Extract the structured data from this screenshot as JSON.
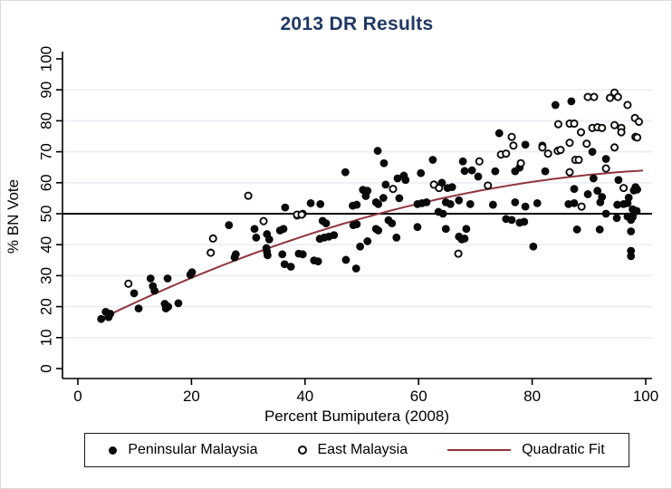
{
  "chart_data": {
    "type": "scatter",
    "title": "2013 DR Results",
    "title_color": "#1f3864",
    "xlabel": "Percent Bumiputera (2008)",
    "ylabel": "% BN Vote",
    "xlim": [
      0,
      100
    ],
    "ylim": [
      0,
      100
    ],
    "x_ticks": [
      0,
      20,
      40,
      60,
      80,
      100
    ],
    "y_ticks": [
      0,
      10,
      20,
      30,
      40,
      50,
      60,
      70,
      80,
      90,
      100
    ],
    "gridlines_y": [
      10,
      20,
      30,
      40,
      60,
      70,
      80,
      90
    ],
    "grid_color": "#e8eef4",
    "axis_color": "#000000",
    "reference_line": {
      "y": 50,
      "color": "#000000"
    },
    "legend_position": "bottom",
    "series": [
      {
        "name": "Peninsular Malaysia",
        "marker": "filled-circle",
        "color": "#0a0a0a",
        "points": [
          [
            4.1,
            16
          ],
          [
            4.9,
            18.3
          ],
          [
            5.4,
            16.6
          ],
          [
            5.7,
            17.7
          ],
          [
            9.9,
            24.3
          ],
          [
            10.7,
            19.4
          ],
          [
            12.8,
            29.1
          ],
          [
            13.2,
            26.6
          ],
          [
            13.5,
            25.1
          ],
          [
            15.3,
            20.9
          ],
          [
            15.5,
            19.4
          ],
          [
            15.9,
            20
          ],
          [
            15.8,
            29.1
          ],
          [
            17.7,
            21.1
          ],
          [
            19.8,
            30.3
          ],
          [
            20.1,
            31.1
          ],
          [
            26.6,
            46.3
          ],
          [
            27.6,
            35.9
          ],
          [
            27.8,
            36.9
          ],
          [
            31.1,
            45.1
          ],
          [
            31.4,
            42.3
          ],
          [
            33.2,
            38.9
          ],
          [
            33.3,
            43.4
          ],
          [
            33.3,
            37.7
          ],
          [
            33.4,
            36.6
          ],
          [
            33.7,
            41.7
          ],
          [
            35.6,
            44.6
          ],
          [
            36,
            36.9
          ],
          [
            36.2,
            45.1
          ],
          [
            36.4,
            33.7
          ],
          [
            36.5,
            52
          ],
          [
            37.5,
            32.9
          ],
          [
            38.6,
            49.4
          ],
          [
            38.9,
            37.1
          ],
          [
            39.6,
            50
          ],
          [
            39.6,
            36.9
          ],
          [
            41,
            53.4
          ],
          [
            41.6,
            34.9
          ],
          [
            42.3,
            34.6
          ],
          [
            42.6,
            41.9
          ],
          [
            42.7,
            53.1
          ],
          [
            43.1,
            47.7
          ],
          [
            43.4,
            42.3
          ],
          [
            43.7,
            46.9
          ],
          [
            44.2,
            42.6
          ],
          [
            45.1,
            43.1
          ],
          [
            47.1,
            63.4
          ],
          [
            47.2,
            35.1
          ],
          [
            48.4,
            52.6
          ],
          [
            48.5,
            46.3
          ],
          [
            49,
            32.3
          ],
          [
            49.1,
            52.9
          ],
          [
            49.1,
            46.6
          ],
          [
            49.7,
            39.4
          ],
          [
            50.2,
            57.7
          ],
          [
            50.7,
            55.7
          ],
          [
            51,
            57.4
          ],
          [
            51,
            41.1
          ],
          [
            52.5,
            53.7
          ],
          [
            52.5,
            45.1
          ],
          [
            52.8,
            70.3
          ],
          [
            52.9,
            53.1
          ],
          [
            52.9,
            44.6
          ],
          [
            53.8,
            55.1
          ],
          [
            53.9,
            66.3
          ],
          [
            54.2,
            59.4
          ],
          [
            54.7,
            47.9
          ],
          [
            55.3,
            46.9
          ],
          [
            56.1,
            42.3
          ],
          [
            56.3,
            61.4
          ],
          [
            56.6,
            55
          ],
          [
            57.4,
            62.3
          ],
          [
            57.7,
            60.9
          ],
          [
            59.8,
            53.1
          ],
          [
            59.8,
            45.7
          ],
          [
            60.4,
            63.1
          ],
          [
            60.6,
            53.4
          ],
          [
            61.4,
            53.7
          ],
          [
            62.5,
            67.4
          ],
          [
            63.5,
            50.6
          ],
          [
            64.1,
            60
          ],
          [
            64.3,
            50
          ],
          [
            64.8,
            53.7
          ],
          [
            64.8,
            45.1
          ],
          [
            65.1,
            58.3
          ],
          [
            65.6,
            53.1
          ],
          [
            65.9,
            58.6
          ],
          [
            67.1,
            54.3
          ],
          [
            67.1,
            42.6
          ],
          [
            67.6,
            41.7
          ],
          [
            67.8,
            66.9
          ],
          [
            68.1,
            63.8
          ],
          [
            68.1,
            42
          ],
          [
            68.4,
            45.1
          ],
          [
            69.1,
            53.1
          ],
          [
            69.4,
            64
          ],
          [
            70.5,
            62
          ],
          [
            73.1,
            52.9
          ],
          [
            73.5,
            63.7
          ],
          [
            74.2,
            76
          ],
          [
            75.4,
            48.3
          ],
          [
            76.4,
            48
          ],
          [
            77,
            53.7
          ],
          [
            77,
            63.7
          ],
          [
            77.8,
            64.9
          ],
          [
            77.8,
            47.1
          ],
          [
            78.6,
            47.4
          ],
          [
            78.8,
            72.3
          ],
          [
            78.8,
            52.3
          ],
          [
            80.2,
            39.4
          ],
          [
            80.9,
            53.4
          ],
          [
            81.8,
            72
          ],
          [
            82.3,
            63.7
          ],
          [
            84.1,
            85.1
          ],
          [
            86.4,
            53.1
          ],
          [
            86.9,
            86.3
          ],
          [
            87.4,
            58
          ],
          [
            87.4,
            53.4
          ],
          [
            87.9,
            44.9
          ],
          [
            89.8,
            56.3
          ],
          [
            90.6,
            70
          ],
          [
            90.8,
            61.4
          ],
          [
            91.5,
            57.4
          ],
          [
            91.9,
            44.9
          ],
          [
            92,
            53.7
          ],
          [
            92.3,
            55.4
          ],
          [
            93,
            67.7
          ],
          [
            93,
            50
          ],
          [
            94.9,
            48.6
          ],
          [
            95,
            52.9
          ],
          [
            95.2,
            60.9
          ],
          [
            96.1,
            53.1
          ],
          [
            96.8,
            53.4
          ],
          [
            96.8,
            49.1
          ],
          [
            97,
            55.2
          ],
          [
            97.4,
            48
          ],
          [
            97.4,
            44.3
          ],
          [
            97.4,
            38
          ],
          [
            97.4,
            36.3
          ],
          [
            97.7,
            51.4
          ],
          [
            97.7,
            48.9
          ],
          [
            97.9,
            57.5
          ],
          [
            98.1,
            50.6
          ],
          [
            98.2,
            58.6
          ],
          [
            98.4,
            50.9
          ],
          [
            98.5,
            57.8
          ]
        ]
      },
      {
        "name": "East Malaysia",
        "marker": "open-circle",
        "color": "#0a0a0a",
        "points": [
          [
            8.9,
            27.4
          ],
          [
            23.4,
            37.4
          ],
          [
            23.8,
            42
          ],
          [
            30,
            55.8
          ],
          [
            32.7,
            47.6
          ],
          [
            38.6,
            49.7
          ],
          [
            39.4,
            49.7
          ],
          [
            55.5,
            58
          ],
          [
            62.7,
            59.4
          ],
          [
            63.6,
            58.3
          ],
          [
            67,
            37.1
          ],
          [
            70.7,
            66.9
          ],
          [
            72.2,
            59.1
          ],
          [
            74.5,
            69.1
          ],
          [
            75.4,
            69.4
          ],
          [
            76.4,
            74.8
          ],
          [
            76.7,
            72
          ],
          [
            78,
            66.3
          ],
          [
            81.8,
            71.4
          ],
          [
            82.8,
            69.4
          ],
          [
            84.5,
            70.3
          ],
          [
            84.6,
            78.9
          ],
          [
            85,
            70.6
          ],
          [
            86.6,
            79.1
          ],
          [
            86.6,
            72.9
          ],
          [
            86.6,
            63.4
          ],
          [
            87.4,
            79.1
          ],
          [
            87.6,
            67.4
          ],
          [
            88.2,
            67.4
          ],
          [
            88.6,
            76.3
          ],
          [
            88.7,
            52.3
          ],
          [
            89.6,
            72.6
          ],
          [
            89.8,
            87.7
          ],
          [
            90.6,
            77.7
          ],
          [
            90.9,
            87.7
          ],
          [
            91.5,
            77.9
          ],
          [
            92.3,
            77.7
          ],
          [
            93,
            64.6
          ],
          [
            93.7,
            87.4
          ],
          [
            94.5,
            89.1
          ],
          [
            94.5,
            78.6
          ],
          [
            94.5,
            71.4
          ],
          [
            95.1,
            87.7
          ],
          [
            95.7,
            77.7
          ],
          [
            95.7,
            76.3
          ],
          [
            96.1,
            58.3
          ],
          [
            96.8,
            85.1
          ],
          [
            98.1,
            80.9
          ],
          [
            98.2,
            74.8
          ],
          [
            98.5,
            74.6
          ],
          [
            98.8,
            79.7
          ]
        ]
      },
      {
        "name": "Quadratic Fit",
        "marker": "line",
        "color": "#90353b",
        "fit": {
          "a": 12.35,
          "b": 0.929,
          "c": -0.004125
        },
        "x_range": [
          3.5,
          100
        ]
      }
    ]
  }
}
